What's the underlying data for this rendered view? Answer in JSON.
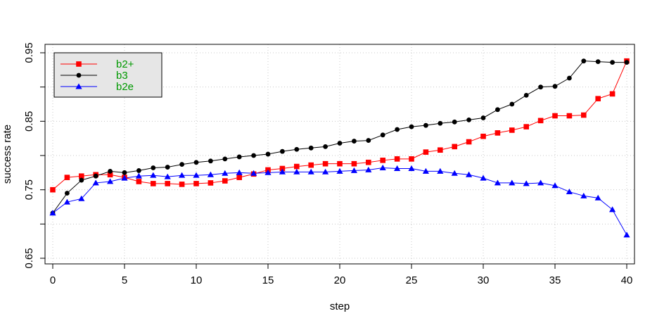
{
  "chart_data": {
    "type": "line",
    "title": "",
    "xlabel": "step",
    "ylabel": "success rate",
    "xlim": [
      0,
      40
    ],
    "ylim": [
      0.65,
      0.95
    ],
    "x_ticks": [
      0,
      5,
      10,
      15,
      20,
      25,
      30,
      35,
      40
    ],
    "x_tick_labels": [
      "0",
      "5",
      "10",
      "15",
      "20",
      "25",
      "30",
      "35",
      "40"
    ],
    "y_ticks": [
      0.65,
      0.75,
      0.85,
      0.95
    ],
    "y_tick_labels": [
      "0.65",
      "0.75",
      "0.85",
      "0.95"
    ],
    "grid": true,
    "legend_position": "top-left",
    "x": [
      0,
      1,
      2,
      3,
      4,
      5,
      6,
      7,
      8,
      9,
      10,
      11,
      12,
      13,
      14,
      15,
      16,
      17,
      18,
      19,
      20,
      21,
      22,
      23,
      24,
      25,
      26,
      27,
      28,
      29,
      30,
      31,
      32,
      33,
      34,
      35,
      36,
      37,
      38,
      39,
      40
    ],
    "series": [
      {
        "name": "b2+",
        "color": "#ff0000",
        "marker": "square",
        "values": [
          0.75,
          0.768,
          0.77,
          0.772,
          0.772,
          0.768,
          0.762,
          0.759,
          0.759,
          0.758,
          0.759,
          0.76,
          0.763,
          0.768,
          0.773,
          0.779,
          0.781,
          0.784,
          0.786,
          0.788,
          0.788,
          0.788,
          0.79,
          0.793,
          0.795,
          0.795,
          0.805,
          0.808,
          0.813,
          0.82,
          0.828,
          0.833,
          0.837,
          0.842,
          0.851,
          0.858,
          0.858,
          0.859,
          0.883,
          0.89,
          0.938
        ]
      },
      {
        "name": "b3",
        "color": "#000000",
        "marker": "circle",
        "values": [
          0.716,
          0.745,
          0.764,
          0.77,
          0.777,
          0.775,
          0.778,
          0.782,
          0.783,
          0.787,
          0.79,
          0.792,
          0.795,
          0.798,
          0.8,
          0.802,
          0.806,
          0.809,
          0.811,
          0.813,
          0.818,
          0.821,
          0.822,
          0.83,
          0.838,
          0.842,
          0.844,
          0.847,
          0.849,
          0.852,
          0.855,
          0.867,
          0.875,
          0.888,
          0.9,
          0.901,
          0.913,
          0.938,
          0.937,
          0.936,
          0.936
        ]
      },
      {
        "name": "b2e",
        "color": "#0000ff",
        "marker": "triangle",
        "values": [
          0.716,
          0.732,
          0.737,
          0.76,
          0.762,
          0.767,
          0.77,
          0.771,
          0.769,
          0.771,
          0.771,
          0.772,
          0.774,
          0.775,
          0.774,
          0.775,
          0.776,
          0.776,
          0.776,
          0.776,
          0.777,
          0.778,
          0.779,
          0.782,
          0.781,
          0.781,
          0.777,
          0.777,
          0.774,
          0.772,
          0.767,
          0.76,
          0.76,
          0.759,
          0.76,
          0.756,
          0.747,
          0.741,
          0.738,
          0.721,
          0.684
        ]
      }
    ]
  },
  "legend": {
    "bg_color": "#e6e6e6",
    "text_color": "#009900",
    "items": [
      "b2+",
      "b3",
      "b2e"
    ]
  }
}
